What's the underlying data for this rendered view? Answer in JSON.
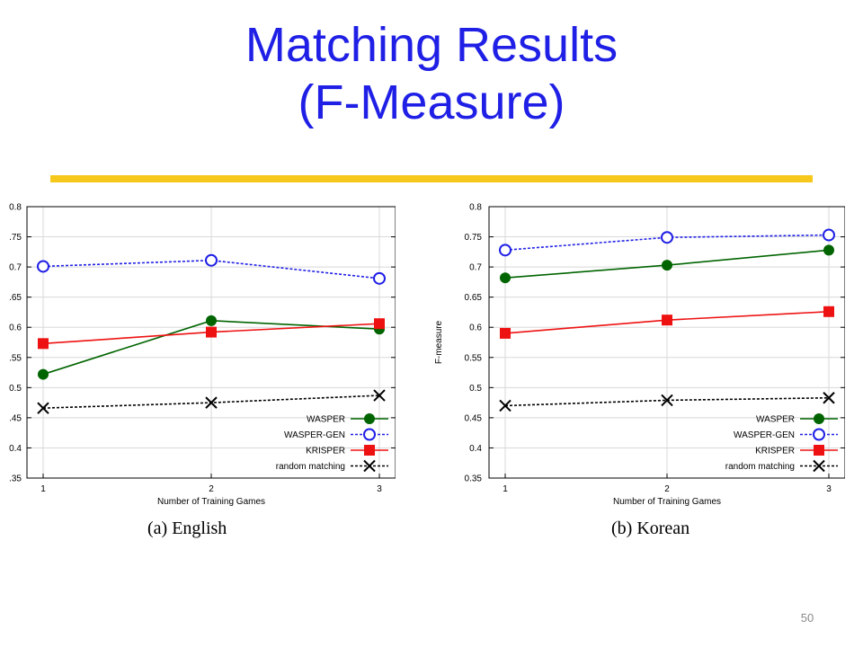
{
  "slide": {
    "title_line1": "Matching Results",
    "title_line2": "(F-Measure)",
    "page_number": "50",
    "title_color": "#1f1fe6",
    "rule_color": "#f6c81b"
  },
  "chart_data": [
    {
      "type": "line",
      "caption": "(a)  English",
      "xlabel": "Number of Training Games",
      "ylabel": "",
      "x": [
        1,
        2,
        3
      ],
      "xticks": [
        "1",
        "2",
        "3"
      ],
      "ylim": [
        0.35,
        0.8
      ],
      "yticks": [
        "0.8",
        ".75",
        "0.7",
        ".65",
        "0.6",
        ".55",
        "0.5",
        ".45",
        "0.4",
        ".35"
      ],
      "ytick_values": [
        0.8,
        0.75,
        0.7,
        0.65,
        0.6,
        0.55,
        0.5,
        0.45,
        0.4,
        0.35
      ],
      "legend_position": "bottom-right",
      "series": [
        {
          "name": "WASPER",
          "values": [
            0.522,
            0.611,
            0.597
          ],
          "color": "#006400",
          "marker": "filled-circle",
          "dash": "solid"
        },
        {
          "name": "WASPER-GEN",
          "values": [
            0.701,
            0.711,
            0.681
          ],
          "color": "#1f1fe6",
          "marker": "open-circle",
          "dash": "dotted"
        },
        {
          "name": "KRISPER",
          "values": [
            0.573,
            0.592,
            0.606
          ],
          "color": "#ee1111",
          "marker": "filled-square",
          "dash": "solid"
        },
        {
          "name": "random matching",
          "values": [
            0.466,
            0.475,
            0.487
          ],
          "color": "#000000",
          "marker": "cross",
          "dash": "dotted"
        }
      ]
    },
    {
      "type": "line",
      "caption": "(b)  Korean",
      "xlabel": "Number of Training Games",
      "ylabel": "F-measure",
      "x": [
        1,
        2,
        3
      ],
      "xticks": [
        "1",
        "2",
        "3"
      ],
      "ylim": [
        0.35,
        0.8
      ],
      "yticks": [
        "0.8",
        "0.75",
        "0.7",
        "0.65",
        "0.6",
        "0.55",
        "0.5",
        "0.45",
        "0.4",
        "0.35"
      ],
      "ytick_values": [
        0.8,
        0.75,
        0.7,
        0.65,
        0.6,
        0.55,
        0.5,
        0.45,
        0.4,
        0.35
      ],
      "legend_position": "bottom-right",
      "series": [
        {
          "name": "WASPER",
          "values": [
            0.682,
            0.703,
            0.728
          ],
          "color": "#006400",
          "marker": "filled-circle",
          "dash": "solid"
        },
        {
          "name": "WASPER-GEN",
          "values": [
            0.728,
            0.749,
            0.753
          ],
          "color": "#1f1fe6",
          "marker": "open-circle",
          "dash": "dotted"
        },
        {
          "name": "KRISPER",
          "values": [
            0.59,
            0.612,
            0.626
          ],
          "color": "#ee1111",
          "marker": "filled-square",
          "dash": "solid"
        },
        {
          "name": "random matching",
          "values": [
            0.47,
            0.479,
            0.483
          ],
          "color": "#000000",
          "marker": "cross",
          "dash": "dotted"
        }
      ]
    }
  ]
}
